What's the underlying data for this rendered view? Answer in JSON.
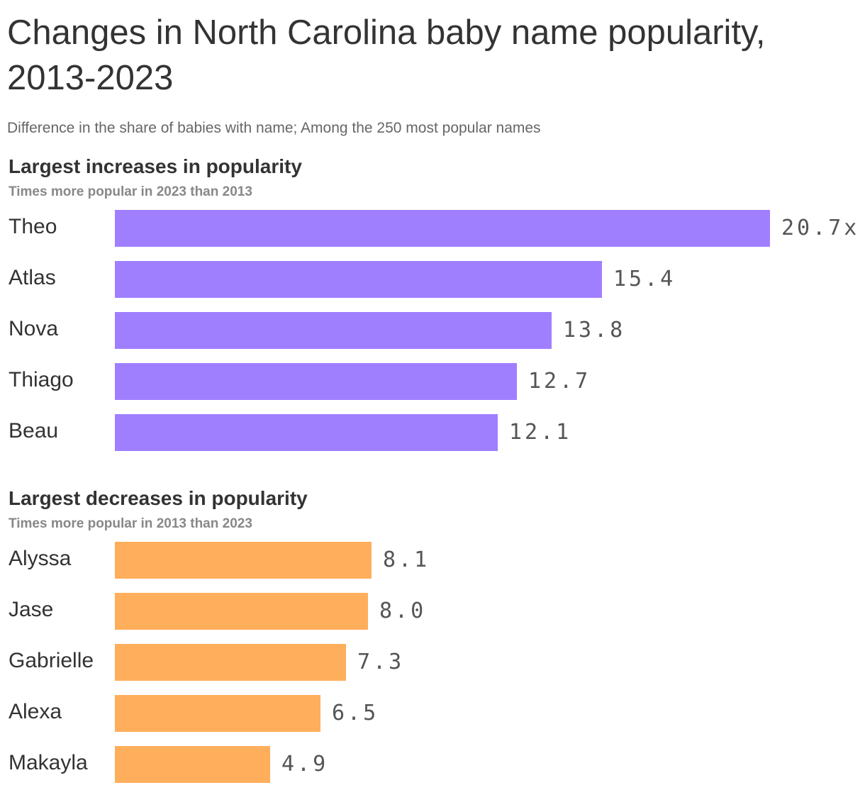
{
  "header": {
    "title": "Changes in North Carolina baby name popularity, 2013-2023",
    "subtitle": "Difference in the share of babies with name; Among the 250 most popular names"
  },
  "chart_data": [
    {
      "type": "bar",
      "orientation": "horizontal",
      "title": "Largest increases in popularity",
      "subtitle": "Times more popular in 2023 than 2013",
      "categories": [
        "Theo",
        "Atlas",
        "Nova",
        "Thiago",
        "Beau"
      ],
      "values": [
        20.7,
        15.4,
        13.8,
        12.7,
        12.1
      ],
      "value_labels": [
        "20.7x",
        "15.4",
        "13.8",
        "12.7",
        "12.1"
      ],
      "color": "#a07fff",
      "xlim": [
        0,
        20.7
      ],
      "grid": false,
      "legend": "none"
    },
    {
      "type": "bar",
      "orientation": "horizontal",
      "title": "Largest decreases in popularity",
      "subtitle": "Times more popular in 2013 than 2023",
      "categories": [
        "Alyssa",
        "Jase",
        "Gabrielle",
        "Alexa",
        "Makayla"
      ],
      "values": [
        8.1,
        8.0,
        7.3,
        6.5,
        4.9
      ],
      "value_labels": [
        "8.1",
        "8.0",
        "7.3",
        "6.5",
        "4.9"
      ],
      "color": "#ffae5c",
      "xlim": [
        0,
        20.7
      ],
      "grid": false,
      "legend": "none"
    }
  ]
}
